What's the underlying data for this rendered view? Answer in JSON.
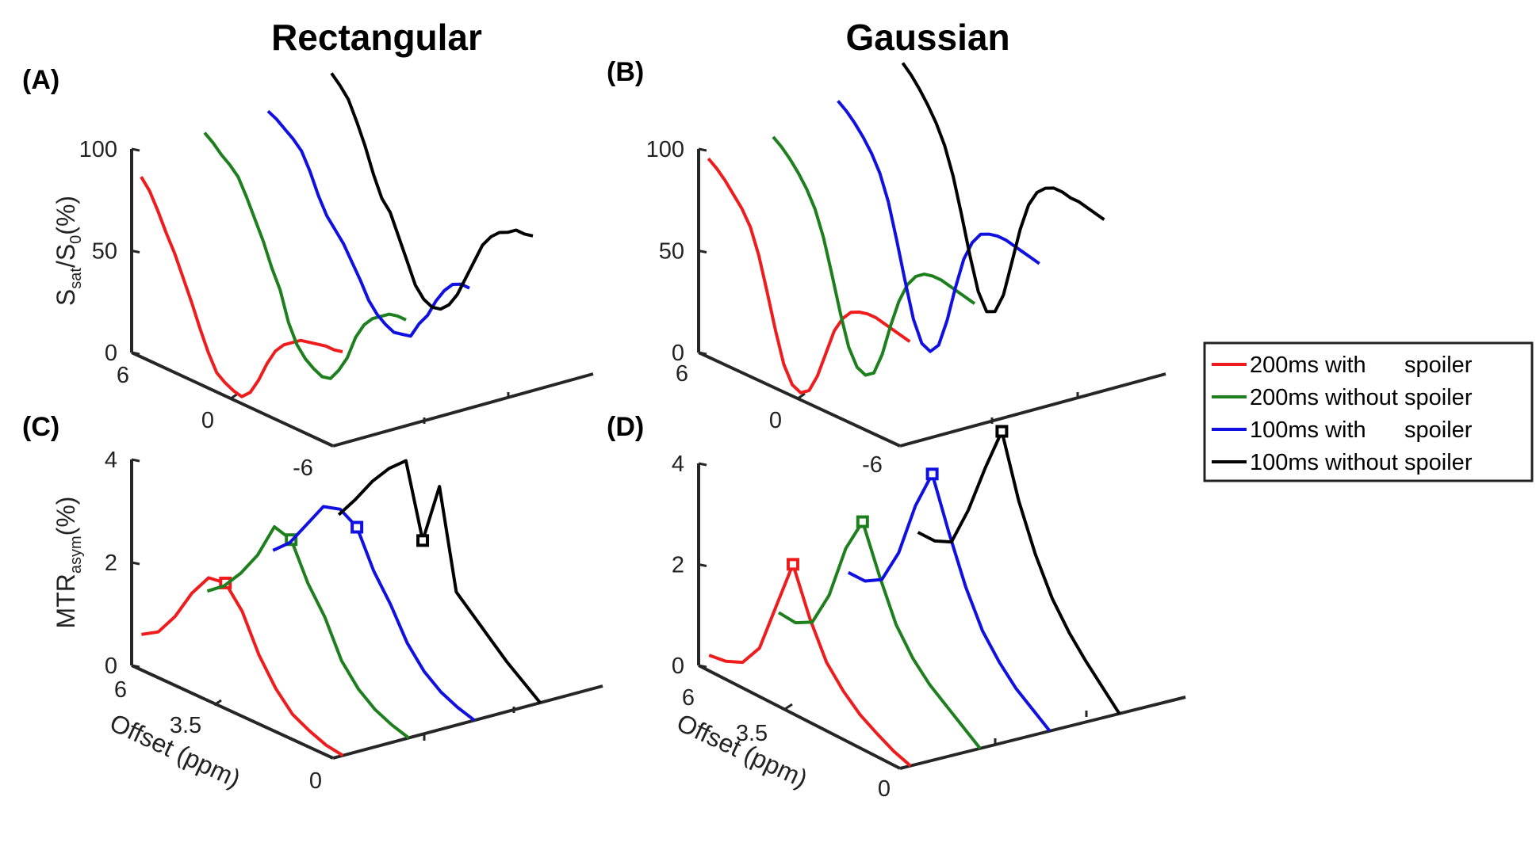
{
  "figure": {
    "column_titles": [
      "Rectangular",
      "Gaussian"
    ]
  },
  "legend": {
    "entries": [
      {
        "label": "200ms with      spoiler",
        "color": "#ee1c1c"
      },
      {
        "label": "200ms without spoiler",
        "color": "#1d7f1d"
      },
      {
        "label": "100ms with      spoiler",
        "color": "#1010e0"
      },
      {
        "label": "100ms without spoiler",
        "color": "#000000"
      }
    ]
  },
  "chart_data": [
    {
      "panel": "(A)",
      "type": "line",
      "pulse": "Rectangular",
      "ylabel": "S_sat/S_0(%)",
      "ylim": [
        0,
        100
      ],
      "yticks": [
        "0",
        "50",
        "100"
      ],
      "xlabel": "",
      "xlim": [
        6,
        -6
      ],
      "xticks": [
        "6",
        "0",
        "-6"
      ],
      "series": [
        {
          "name": "200ms with spoiler",
          "x": [
            6,
            5.5,
            5,
            4.5,
            4,
            3.5,
            3,
            2.5,
            2,
            1.5,
            1,
            0.5,
            0,
            -0.5,
            -1,
            -1.5,
            -2,
            -2.5,
            -3,
            -3.5,
            -4,
            -4.5,
            -5,
            -5.5,
            -6
          ],
          "values": [
            85,
            80,
            72,
            63,
            55,
            45,
            35,
            24,
            14,
            6,
            3,
            1,
            0,
            4,
            12,
            22,
            30,
            35,
            38,
            41,
            42,
            43,
            44,
            44,
            45
          ]
        },
        {
          "name": "200ms without spoiler",
          "x": [
            6,
            5.5,
            5,
            4.5,
            4,
            3.5,
            3,
            2.5,
            2,
            1.5,
            1,
            0.5,
            0,
            -0.5,
            -1,
            -1.5,
            -2,
            -2.5,
            -3,
            -3.5,
            -4,
            -4.5,
            -5,
            -5.5,
            -6
          ],
          "values": [
            98,
            95,
            91,
            88,
            84,
            76,
            67,
            58,
            47,
            38,
            24,
            15,
            10,
            7,
            5,
            6,
            12,
            20,
            32,
            40,
            45,
            48,
            51,
            52,
            52
          ]
        },
        {
          "name": "100ms with spoiler",
          "x": [
            6,
            5.5,
            5,
            4.5,
            4,
            3.5,
            3,
            2.5,
            2,
            1.5,
            1,
            0.5,
            0,
            -0.5,
            -1,
            -1.5,
            -2,
            -2.5,
            -3,
            -3.5,
            -4,
            -4.5,
            -5,
            -5.5,
            -6
          ],
          "values": [
            100,
            98,
            95,
            92,
            88,
            80,
            70,
            62,
            57,
            52,
            45,
            38,
            30,
            25,
            22,
            20,
            21,
            22,
            30,
            36,
            45,
            52,
            57,
            59,
            59
          ]
        },
        {
          "name": "100ms without spoiler",
          "x": [
            6,
            5.5,
            5,
            4.5,
            4,
            3.5,
            3,
            2.5,
            2,
            1.5,
            1,
            0.5,
            0,
            -0.5,
            -1,
            -1.5,
            -2,
            -2.5,
            -3,
            -3.5,
            -4,
            -4.5,
            -5,
            -5.5,
            -6
          ],
          "values": [
            110,
            106,
            101,
            92,
            82,
            70,
            60,
            55,
            45,
            35,
            25,
            20,
            18,
            19,
            23,
            30,
            40,
            50,
            60,
            66,
            70,
            72,
            75,
            75,
            76
          ]
        }
      ]
    },
    {
      "panel": "(B)",
      "type": "line",
      "pulse": "Gaussian",
      "ylabel": "",
      "ylim": [
        0,
        100
      ],
      "yticks": [
        "0",
        "50",
        "100"
      ],
      "xlabel": "",
      "xlim": [
        6,
        -6
      ],
      "xticks": [
        "6",
        "0",
        "-6"
      ],
      "series": [
        {
          "name": "200ms with spoiler",
          "x": [
            6,
            5.5,
            5,
            4.5,
            4,
            3.5,
            3,
            2.5,
            2,
            1.5,
            1,
            0.5,
            0,
            -0.5,
            -1,
            -1.5,
            -2,
            -2.5,
            -3,
            -3.5,
            -4,
            -4.5,
            -5,
            -5.5,
            -6
          ],
          "values": [
            94,
            91,
            87,
            82,
            77,
            70,
            58,
            42,
            25,
            10,
            2,
            0,
            3,
            12,
            25,
            38,
            46,
            51,
            53,
            54,
            54,
            53,
            52,
            51,
            50
          ]
        },
        {
          "name": "200ms without spoiler",
          "x": [
            6,
            5.5,
            5,
            4.5,
            4,
            3.5,
            3,
            2.5,
            2,
            1.5,
            1,
            0.5,
            0,
            -0.5,
            -1,
            -1.5,
            -2,
            -2.5,
            -3,
            -3.5,
            -4,
            -4.5,
            -5,
            -5.5,
            -6
          ],
          "values": [
            96,
            93,
            89,
            84,
            78,
            70,
            58,
            42,
            25,
            10,
            2,
            0,
            3,
            14,
            30,
            44,
            54,
            60,
            63,
            64,
            64,
            63,
            62,
            61,
            60
          ]
        },
        {
          "name": "100ms with spoiler",
          "x": [
            6,
            5.5,
            5,
            4.5,
            4,
            3.5,
            3,
            2.5,
            2,
            1.5,
            1,
            0.5,
            0,
            -0.5,
            -1,
            -1.5,
            -2,
            -2.5,
            -3,
            -3.5,
            -4,
            -4.5,
            -5,
            -5.5,
            -6
          ],
          "values": [
            105,
            102,
            98,
            93,
            87,
            79,
            67,
            50,
            32,
            15,
            5,
            3,
            8,
            22,
            40,
            56,
            66,
            72,
            74,
            75,
            75,
            74,
            73,
            72,
            71
          ]
        },
        {
          "name": "100ms without spoiler",
          "x": [
            6,
            5.5,
            5,
            4.5,
            4,
            3.5,
            3,
            2.5,
            2,
            1.5,
            1,
            0.5,
            0,
            -0.5,
            -1,
            -1.5,
            -2,
            -2.5,
            -3,
            -3.5,
            -4,
            -4.5,
            -5,
            -5.5,
            -6
          ],
          "values": [
            115,
            111,
            106,
            100,
            93,
            84,
            71,
            54,
            36,
            20,
            12,
            14,
            24,
            42,
            60,
            74,
            82,
            86,
            88,
            88,
            87,
            87,
            86,
            85,
            84
          ]
        }
      ]
    },
    {
      "panel": "(C)",
      "type": "line",
      "pulse": "Rectangular",
      "ylabel": "MTR_asym(%)",
      "ylim": [
        0,
        4
      ],
      "yticks": [
        "0",
        "2",
        "4"
      ],
      "xlabel": "Offset (ppm)",
      "xlim": [
        6,
        0
      ],
      "xticks": [
        "6",
        "3.5",
        "0"
      ],
      "series": [
        {
          "name": "200ms with spoiler",
          "x": [
            6,
            5.5,
            5,
            4.5,
            4,
            3.5,
            3,
            2.5,
            2,
            1.5,
            1,
            0.5,
            0
          ],
          "values": [
            0.55,
            0.75,
            1.2,
            1.8,
            2.25,
            2.3,
            1.9,
            1.2,
            0.7,
            0.35,
            0.18,
            0.05,
            0
          ],
          "peak": 3.5
        },
        {
          "name": "200ms without spoiler",
          "x": [
            6,
            5.5,
            5,
            4.5,
            4,
            3.5,
            3,
            2.5,
            2,
            1.5,
            1,
            0.5,
            0
          ],
          "values": [
            1.05,
            1.3,
            1.7,
            2.2,
            2.9,
            2.8,
            2.1,
            1.6,
            0.9,
            0.5,
            0.25,
            0.1,
            0
          ],
          "peak": 3.5
        },
        {
          "name": "100ms with spoiler",
          "x": [
            6,
            5.5,
            5,
            4.5,
            4,
            3.5,
            3,
            2.5,
            2,
            1.5,
            1,
            0.5,
            0
          ],
          "values": [
            1.5,
            1.8,
            2.3,
            2.8,
            2.9,
            2.7,
            2.0,
            1.5,
            0.9,
            0.5,
            0.25,
            0.1,
            0
          ],
          "peak": 3.5
        },
        {
          "name": "100ms without spoiler",
          "x": [
            6,
            5.5,
            5,
            4.5,
            4,
            3.5,
            3,
            2.5,
            2,
            1.5,
            1,
            0.5,
            0
          ],
          "values": [
            1.85,
            2.3,
            2.8,
            3.2,
            3.5,
            2.1,
            3.3,
            1.4,
            1.1,
            0.8,
            0.5,
            0.25,
            0
          ],
          "peak": 3.5
        }
      ]
    },
    {
      "panel": "(D)",
      "type": "line",
      "pulse": "Gaussian",
      "ylabel": "",
      "ylim": [
        0,
        4
      ],
      "yticks": [
        "0",
        "2",
        "4"
      ],
      "xlabel": "Offset (ppm)",
      "xlim": [
        6,
        0
      ],
      "xticks": [
        "6",
        "3.5",
        "0"
      ],
      "series": [
        {
          "name": "200ms with spoiler",
          "x": [
            6,
            5.5,
            5,
            4.5,
            4,
            3.5,
            3,
            2.5,
            2,
            1.5,
            1,
            0.5,
            0
          ],
          "values": [
            0.15,
            0.2,
            0.35,
            0.8,
            1.8,
            2.8,
            1.9,
            1.2,
            0.8,
            0.5,
            0.3,
            0.12,
            0
          ],
          "peak": 3.5
        },
        {
          "name": "200ms without spoiler",
          "x": [
            6,
            5.5,
            5,
            4.5,
            4,
            3.5,
            3,
            2.5,
            2,
            1.5,
            1,
            0.5,
            0
          ],
          "values": [
            0.65,
            0.62,
            0.8,
            1.5,
            2.6,
            3.3,
            2.4,
            1.6,
            1.1,
            0.75,
            0.5,
            0.25,
            0
          ],
          "peak": 3.5
        },
        {
          "name": "100ms with spoiler",
          "x": [
            6,
            5.5,
            5,
            4.5,
            4,
            3.5,
            3,
            2.5,
            2,
            1.5,
            1,
            0.5,
            0
          ],
          "values": [
            1.1,
            1.1,
            1.3,
            2.0,
            3.1,
            3.9,
            2.9,
            2.0,
            1.3,
            0.85,
            0.5,
            0.25,
            0
          ],
          "peak": 3.5
        },
        {
          "name": "100ms without spoiler",
          "x": [
            6,
            5.5,
            5,
            4.5,
            4,
            3.5,
            3,
            2.5,
            2,
            1.5,
            1,
            0.5,
            0
          ],
          "values": [
            1.55,
            1.55,
            1.7,
            2.5,
            3.5,
            4.4,
            3.2,
            2.3,
            1.6,
            1.1,
            0.7,
            0.35,
            0
          ],
          "peak": 3.5
        }
      ]
    }
  ]
}
